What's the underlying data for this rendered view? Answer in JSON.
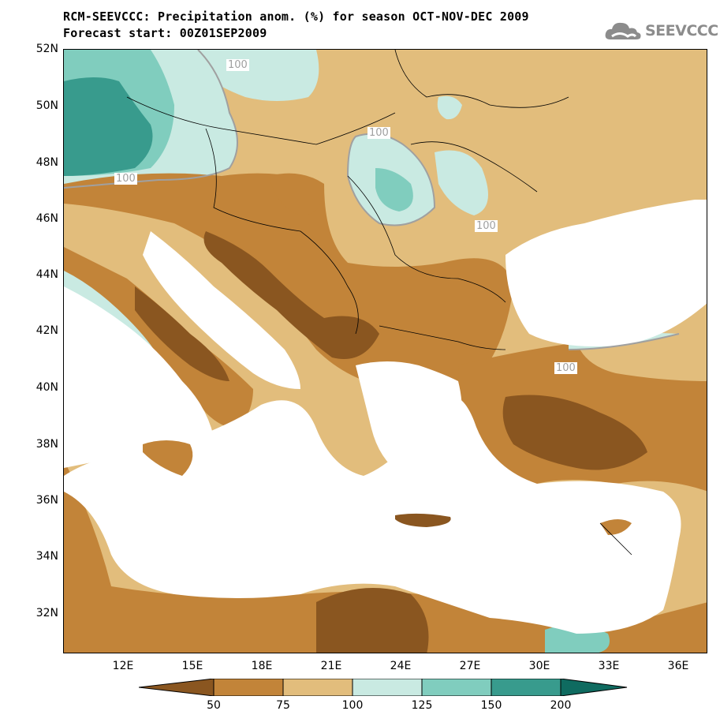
{
  "title": {
    "line1": "RCM-SEEVCCC: Precipitation anom. (%) for season OCT-NOV-DEC 2009",
    "line2": "Forecast start: 00Z01SEP2009"
  },
  "logo": {
    "text": "SEEVCCC",
    "icon": "cloud-logo-icon"
  },
  "colors": {
    "lt50": "#8a5620",
    "c50_75": "#c28439",
    "c75_100": "#e2bd7c",
    "c100_125": "#c9eae2",
    "c125_150": "#80cdbe",
    "c150_200": "#389b8d",
    "gt200": "#0f6b60",
    "water": "#ffffff",
    "contour": "#a0a0a0"
  },
  "axes": {
    "lat_labels": [
      "52N",
      "50N",
      "48N",
      "46N",
      "44N",
      "42N",
      "40N",
      "38N",
      "36N",
      "34N",
      "32N"
    ],
    "lon_labels": [
      "12E",
      "15E",
      "18E",
      "21E",
      "24E",
      "27E",
      "30E",
      "33E",
      "36E"
    ]
  },
  "contour_labels": [
    "100",
    "100",
    "100",
    "100",
    "100"
  ],
  "colorbar": {
    "levels": [
      "50",
      "75",
      "100",
      "125",
      "150",
      "200"
    ]
  }
}
